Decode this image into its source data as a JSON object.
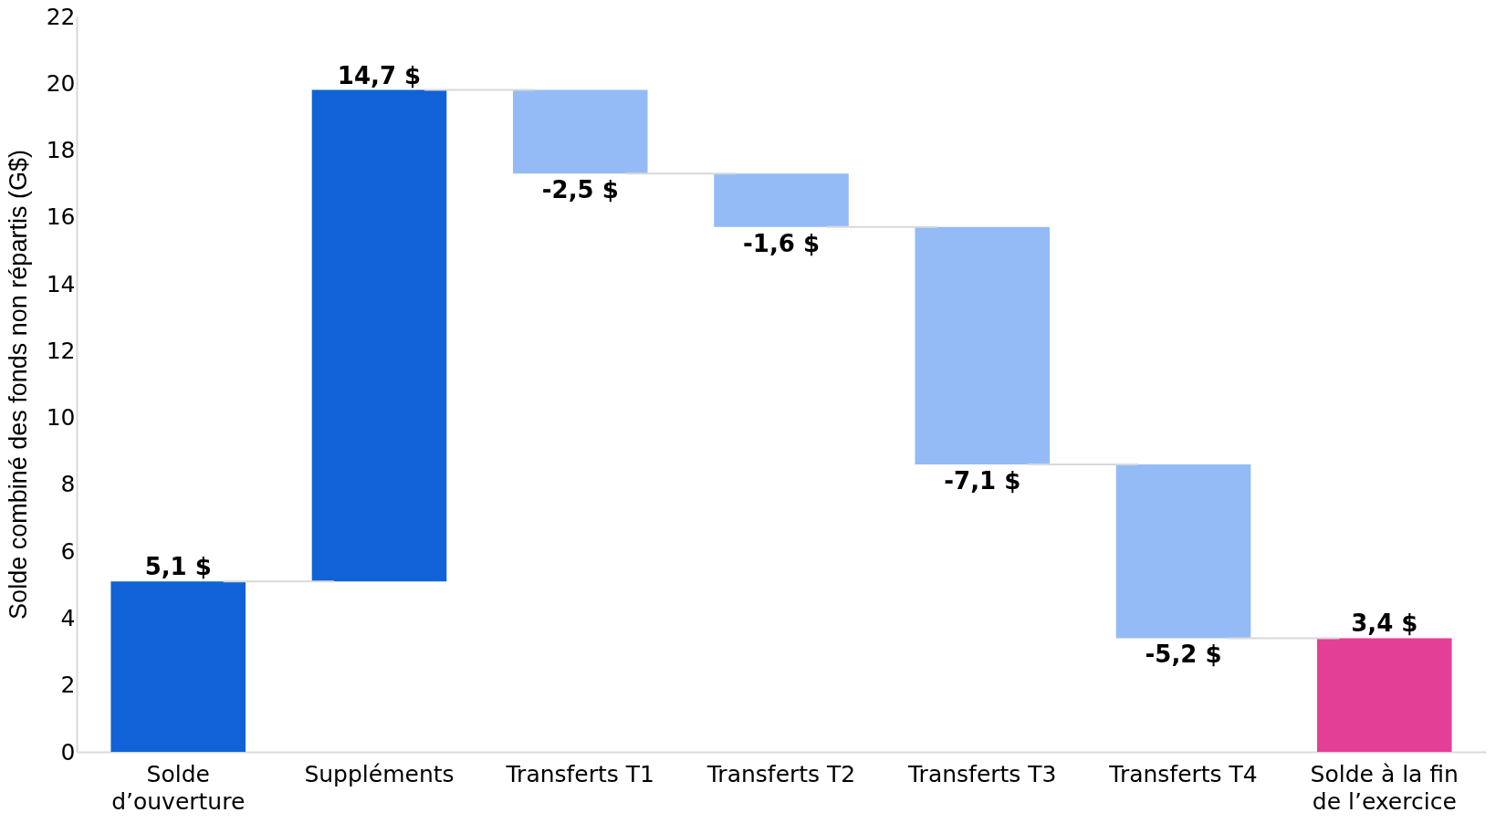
{
  "chart_data": {
    "type": "bar",
    "ylabel": "Solde combiné des fonds non répartis (G$)",
    "categories": [
      "Solde d’ouverture",
      "Suppléments",
      "Transferts T1",
      "Transferts T2",
      "Transferts T3",
      "Transferts T4",
      "Solde à la fin de l’exercice"
    ],
    "values": [
      5.1,
      14.7,
      -2.5,
      -1.6,
      -7.1,
      -5.2,
      3.4
    ],
    "base": [
      0,
      5.1,
      19.8,
      17.3,
      15.7,
      8.6,
      0
    ],
    "colors": [
      "#1162d6",
      "#1162d6",
      "#94bbf6",
      "#94bbf6",
      "#94bbf6",
      "#94bbf6",
      "#e43f96"
    ],
    "value_labels": [
      "5,1 $",
      "14,7 $",
      "-2,5 $",
      "-1,6 $",
      "-7,1 $",
      "-5,2 $",
      "3,4 $"
    ],
    "ylim": [
      0,
      22
    ],
    "yticks": [
      0,
      2,
      4,
      6,
      8,
      10,
      12,
      14,
      16,
      18,
      20,
      22
    ],
    "grid": false
  }
}
